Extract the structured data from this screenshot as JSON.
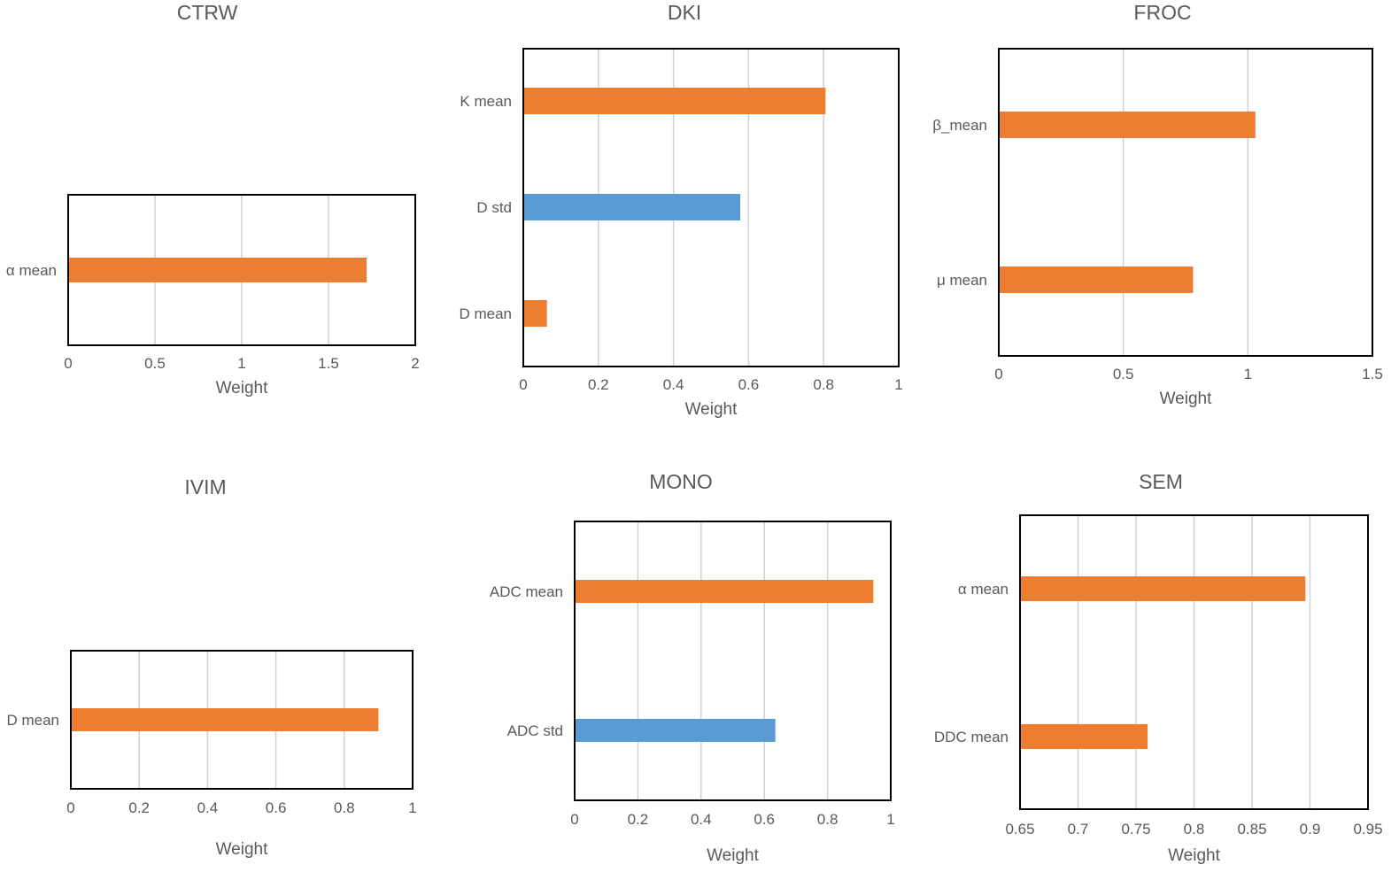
{
  "colors": {
    "orange": "#ED7D31",
    "blue": "#5B9BD5"
  },
  "chart_data": [
    {
      "type": "bar",
      "orientation": "horizontal",
      "title": "CTRW",
      "xlabel": "Weight",
      "xlim": [
        0,
        2
      ],
      "xticks": [
        0,
        0.5,
        1,
        1.5,
        2
      ],
      "tick_labels": [
        "0",
        "0.5",
        "1",
        "1.5",
        "2"
      ],
      "categories": [
        "α mean"
      ],
      "values": [
        1.72
      ],
      "bar_colors": [
        "orange"
      ]
    },
    {
      "type": "bar",
      "orientation": "horizontal",
      "title": "DKI",
      "xlabel": "Weight",
      "xlim": [
        0,
        1
      ],
      "xticks": [
        0,
        0.2,
        0.4,
        0.6,
        0.8,
        1
      ],
      "tick_labels": [
        "0",
        "0.2",
        "0.4",
        "0.6",
        "0.8",
        "1"
      ],
      "categories": [
        "K mean",
        "D std",
        "D mean"
      ],
      "values": [
        0.805,
        0.578,
        0.063
      ],
      "bar_colors": [
        "orange",
        "blue",
        "orange"
      ]
    },
    {
      "type": "bar",
      "orientation": "horizontal",
      "title": "FROC",
      "xlabel": "Weight",
      "xlim": [
        0,
        1.5
      ],
      "xticks": [
        0,
        0.5,
        1,
        1.5
      ],
      "tick_labels": [
        "0",
        "0.5",
        "1",
        "1.5"
      ],
      "categories": [
        "β_mean",
        "μ mean"
      ],
      "values": [
        1.03,
        0.78
      ],
      "bar_colors": [
        "orange",
        "orange"
      ]
    },
    {
      "type": "bar",
      "orientation": "horizontal",
      "title": "IVIM",
      "xlabel": "Weight",
      "xlim": [
        0,
        1
      ],
      "xticks": [
        0,
        0.2,
        0.4,
        0.6,
        0.8,
        1
      ],
      "tick_labels": [
        "0",
        "0.2",
        "0.4",
        "0.6",
        "0.8",
        "1"
      ],
      "categories": [
        "D mean"
      ],
      "values": [
        0.9
      ],
      "bar_colors": [
        "orange"
      ]
    },
    {
      "type": "bar",
      "orientation": "horizontal",
      "title": "MONO",
      "xlabel": "Weight",
      "xlim": [
        0,
        1
      ],
      "xticks": [
        0,
        0.2,
        0.4,
        0.6,
        0.8,
        1
      ],
      "tick_labels": [
        "0",
        "0.2",
        "0.4",
        "0.6",
        "0.8",
        "1"
      ],
      "categories": [
        "ADC mean",
        "ADC std"
      ],
      "values": [
        0.945,
        0.635
      ],
      "bar_colors": [
        "orange",
        "blue"
      ]
    },
    {
      "type": "bar",
      "orientation": "horizontal",
      "title": "SEM",
      "xlabel": "Weight",
      "xlim": [
        0.65,
        0.95
      ],
      "xticks": [
        0.65,
        0.7,
        0.75,
        0.8,
        0.85,
        0.9,
        0.95
      ],
      "tick_labels": [
        "0.65",
        "0.7",
        "0.75",
        "0.8",
        "0.85",
        "0.9",
        "0.95"
      ],
      "categories": [
        "α mean",
        "DDC mean"
      ],
      "values": [
        0.896,
        0.76
      ],
      "bar_colors": [
        "orange",
        "orange"
      ]
    }
  ]
}
